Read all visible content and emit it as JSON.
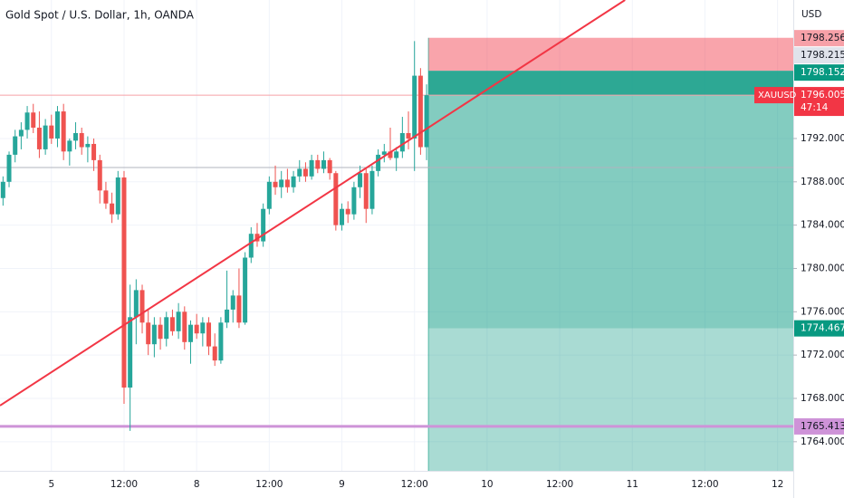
{
  "chart_data": {
    "type": "candlestick",
    "title": "Gold Spot / U.S. Dollar, 1h, OANDA",
    "currency": "USD",
    "symbol": "XAUUSD",
    "last_price": 1796.005,
    "countdown": "47:14",
    "up_color": "#26a69a",
    "down_color": "#ef5350",
    "xlim": [
      -8.5,
      122.6
    ],
    "ylim": [
      1761.31,
      1804.79
    ],
    "xticks": [
      {
        "value": 0,
        "label": "5"
      },
      {
        "value": 12,
        "label": "12:00"
      },
      {
        "value": 24,
        "label": "8"
      },
      {
        "value": 36,
        "label": "12:00"
      },
      {
        "value": 48,
        "label": "9"
      },
      {
        "value": 60,
        "label": "12:00"
      },
      {
        "value": 72,
        "label": "10"
      },
      {
        "value": 84,
        "label": "12:00"
      },
      {
        "value": 96,
        "label": "11"
      },
      {
        "value": 108,
        "label": "12:00"
      },
      {
        "value": 120,
        "label": "12"
      }
    ],
    "yticks": [
      {
        "value": 1764,
        "label": "1764.000"
      },
      {
        "value": 1768,
        "label": "1768.000"
      },
      {
        "value": 1772,
        "label": "1772.000"
      },
      {
        "value": 1776,
        "label": "1776.000"
      },
      {
        "value": 1780,
        "label": "1780.000"
      },
      {
        "value": 1784,
        "label": "1784.000"
      },
      {
        "value": 1788,
        "label": "1788.000"
      },
      {
        "value": 1792,
        "label": "1792.000"
      }
    ],
    "x": [
      -8,
      -7,
      -6,
      -5,
      -4,
      -3,
      -2,
      -1,
      0,
      1,
      2,
      3,
      4,
      5,
      6,
      7,
      8,
      9,
      10,
      11,
      12,
      13,
      14,
      15,
      16,
      17,
      18,
      19,
      20,
      21,
      22,
      23,
      24,
      25,
      26,
      27,
      28,
      29,
      30,
      31,
      32,
      33,
      34,
      35,
      36,
      37,
      38,
      39,
      40,
      41,
      42,
      43,
      44,
      45,
      46,
      47,
      48,
      49,
      50,
      51,
      52,
      53,
      54,
      55,
      56,
      57,
      58,
      59,
      60,
      61,
      62
    ],
    "open": [
      1786.5,
      1788.0,
      1790.5,
      1792.2,
      1792.8,
      1794.4,
      1793.0,
      1791.0,
      1793.2,
      1792.0,
      1794.5,
      1790.8,
      1791.8,
      1792.5,
      1791.2,
      1791.5,
      1790.0,
      1787.2,
      1786.0,
      1785.0,
      1788.4,
      1769.0,
      1775.5,
      1778.0,
      1775.0,
      1773.0,
      1774.8,
      1773.5,
      1775.5,
      1774.2,
      1776.0,
      1773.2,
      1774.8,
      1774.0,
      1775.0,
      1772.8,
      1771.5,
      1775.0,
      1776.2,
      1777.5,
      1775.0,
      1781.0,
      1783.2,
      1782.5,
      1785.5,
      1788.0,
      1787.5,
      1788.2,
      1787.5,
      1788.5,
      1789.2,
      1788.5,
      1790.0,
      1789.2,
      1790.0,
      1788.8,
      1784.0,
      1785.5,
      1785.0,
      1787.5,
      1788.8,
      1785.5,
      1789.0,
      1790.5,
      1790.8,
      1790.2,
      1790.8,
      1792.5,
      1792.0,
      1797.8,
      1791.2
    ],
    "high": [
      1788.5,
      1790.8,
      1792.8,
      1793.5,
      1795.0,
      1795.2,
      1794.5,
      1793.8,
      1794.2,
      1795.0,
      1795.2,
      1792.0,
      1793.5,
      1793.0,
      1792.2,
      1792.0,
      1790.5,
      1788.0,
      1787.0,
      1789.0,
      1789.0,
      1778.5,
      1779.0,
      1778.5,
      1776.2,
      1775.5,
      1775.5,
      1776.0,
      1776.2,
      1776.8,
      1776.5,
      1775.2,
      1775.8,
      1775.5,
      1775.5,
      1774.0,
      1775.5,
      1779.8,
      1778.0,
      1780.0,
      1781.5,
      1783.8,
      1784.2,
      1786.0,
      1788.5,
      1789.5,
      1789.0,
      1789.2,
      1789.0,
      1790.0,
      1789.8,
      1790.5,
      1790.5,
      1790.8,
      1790.2,
      1789.0,
      1786.0,
      1786.2,
      1788.0,
      1789.5,
      1789.2,
      1789.5,
      1791.0,
      1791.5,
      1793.0,
      1791.2,
      1794.0,
      1794.5,
      1801.0,
      1798.5,
      1797.0
    ],
    "low": [
      1785.8,
      1787.5,
      1789.8,
      1791.0,
      1792.0,
      1792.5,
      1790.2,
      1790.5,
      1791.5,
      1791.2,
      1790.0,
      1789.5,
      1791.0,
      1790.5,
      1789.8,
      1789.0,
      1786.0,
      1785.5,
      1784.2,
      1784.5,
      1767.5,
      1765.0,
      1773.0,
      1774.0,
      1772.0,
      1771.8,
      1772.5,
      1772.8,
      1773.8,
      1773.5,
      1772.5,
      1771.2,
      1773.5,
      1772.8,
      1772.0,
      1771.0,
      1771.2,
      1774.5,
      1775.0,
      1774.5,
      1774.8,
      1780.5,
      1782.0,
      1782.0,
      1785.0,
      1786.8,
      1786.5,
      1787.0,
      1787.0,
      1788.0,
      1788.0,
      1788.2,
      1788.8,
      1788.8,
      1788.2,
      1783.5,
      1783.5,
      1784.2,
      1784.5,
      1786.5,
      1784.2,
      1785.0,
      1788.5,
      1789.8,
      1790.0,
      1789.0,
      1790.2,
      1791.0,
      1789.0,
      1790.5,
      1790.0
    ],
    "close": [
      1788.0,
      1790.5,
      1792.2,
      1792.8,
      1794.4,
      1793.0,
      1791.0,
      1793.2,
      1792.0,
      1794.5,
      1790.8,
      1791.8,
      1792.5,
      1791.2,
      1791.5,
      1790.0,
      1787.2,
      1786.0,
      1785.0,
      1788.4,
      1769.0,
      1775.5,
      1778.0,
      1775.0,
      1773.0,
      1774.8,
      1773.5,
      1775.5,
      1774.2,
      1776.0,
      1773.2,
      1774.8,
      1774.0,
      1775.0,
      1772.8,
      1771.5,
      1775.0,
      1776.2,
      1777.5,
      1775.0,
      1781.0,
      1783.2,
      1782.5,
      1785.5,
      1788.0,
      1787.5,
      1788.2,
      1787.5,
      1788.5,
      1789.2,
      1788.5,
      1790.0,
      1789.2,
      1790.0,
      1788.8,
      1784.0,
      1785.5,
      1785.0,
      1787.5,
      1788.8,
      1785.5,
      1789.0,
      1790.5,
      1790.8,
      1790.2,
      1790.8,
      1792.5,
      1792.0,
      1797.8,
      1791.2,
      1796.0
    ],
    "trend_line": {
      "x": [
        -8.5,
        94.8
      ],
      "y": [
        1767.34,
        1804.79
      ],
      "color": "#f23645"
    },
    "support_line": {
      "value": 1765.413,
      "color": "#ce93d8"
    },
    "gray_line": {
      "value": 1789.32
    },
    "position": {
      "x_start": 62.3,
      "stop_top": 1801.3,
      "levels": [
        1798.256,
        1798.215,
        1798.152
      ],
      "target": 1774.467
    }
  }
}
